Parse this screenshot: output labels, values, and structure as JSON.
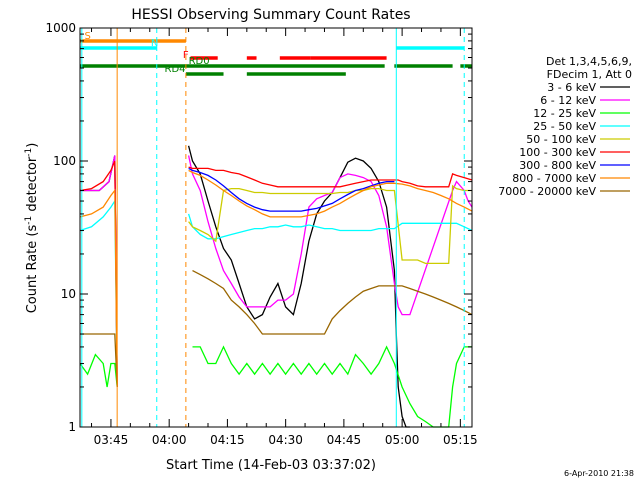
{
  "chart_data": {
    "type": "line",
    "title": "HESSI Observing Summary Count Rates",
    "xlabel": "Start Time (14-Feb-03 03:37:02)",
    "ylabel_main": "Count Rate (s",
    "ylabel_sup1": "-1",
    "ylabel_mid": " detector",
    "ylabel_sup2": "-1",
    "ylabel_end": ")",
    "y_scale": "log",
    "ylim": [
      1,
      1000
    ],
    "xlim": [
      37.03,
      138.0
    ],
    "x_unit": "minutes after 03:00 UT",
    "x_ticks": [
      {
        "value": 45,
        "label": "03:45"
      },
      {
        "value": 60,
        "label": "04:00"
      },
      {
        "value": 75,
        "label": "04:15"
      },
      {
        "value": 90,
        "label": "04:30"
      },
      {
        "value": 105,
        "label": "04:45"
      },
      {
        "value": 120,
        "label": "05:00"
      },
      {
        "value": 135,
        "label": "05:15"
      }
    ],
    "y_ticks": [
      {
        "value": 1,
        "label": "1"
      },
      {
        "value": 10,
        "label": "10"
      },
      {
        "value": 100,
        "label": "100"
      },
      {
        "value": 1000,
        "label": "1000"
      }
    ],
    "legend_header": [
      "Det 1,3,4,5,6,9,",
      "FDecim 1, Att 0"
    ],
    "legend_placement": "right",
    "series": [
      {
        "name": "3 - 6 keV",
        "color": "#000000",
        "x": [
          37.03,
          42,
          44.5,
          46,
          46.6,
          64.3,
          65,
          66,
          68,
          70,
          72,
          74,
          76,
          78,
          80,
          82,
          84,
          86,
          88,
          90,
          92,
          94,
          96,
          98,
          100,
          102,
          104,
          106,
          108,
          110,
          112,
          114,
          116,
          118,
          118.5,
          119,
          120,
          121,
          122
        ],
        "y": [
          60,
          60,
          70,
          110,
          2,
          null,
          130,
          100,
          80,
          50,
          32,
          22,
          18,
          12,
          8,
          6.5,
          7,
          9.5,
          12,
          8,
          7,
          12,
          25,
          40,
          50,
          58,
          75,
          98,
          105,
          100,
          88,
          70,
          45,
          15,
          5,
          2,
          1.2,
          1,
          1
        ]
      },
      {
        "name": "6 - 12 keV",
        "color": "#ff00ff",
        "x": [
          37.03,
          42,
          44.5,
          46,
          46.6,
          64.3,
          65,
          66,
          68,
          70,
          72,
          74,
          76,
          78,
          80,
          82,
          84,
          86,
          88,
          90,
          92,
          94,
          96,
          98,
          100,
          102,
          104,
          106,
          108,
          110,
          112,
          114,
          116,
          118,
          119,
          120,
          121,
          122,
          133,
          134,
          136,
          137,
          138
        ],
        "y": [
          60,
          60,
          70,
          110,
          2,
          null,
          110,
          80,
          60,
          35,
          22,
          15,
          12,
          9.5,
          8,
          8,
          8,
          8,
          9,
          9,
          10,
          20,
          45,
          52,
          55,
          58,
          75,
          80,
          78,
          75,
          70,
          55,
          32,
          12,
          8,
          7,
          7,
          7,
          60,
          70,
          60,
          50,
          45
        ]
      },
      {
        "name": "12 - 25 keV",
        "color": "#00ff00",
        "x": [
          37.03,
          39,
          41,
          43,
          44,
          45,
          46,
          46.6,
          64.3,
          66,
          68,
          70,
          72,
          74,
          76,
          78,
          80,
          82,
          84,
          86,
          88,
          90,
          92,
          94,
          96,
          98,
          100,
          102,
          104,
          106,
          108,
          110,
          112,
          114,
          116,
          118,
          120,
          122,
          124,
          126,
          128,
          130,
          132,
          133,
          134,
          136,
          138
        ],
        "y": [
          3,
          2.5,
          3.5,
          3,
          2,
          3,
          3,
          2,
          null,
          4,
          4,
          3,
          3,
          4,
          3,
          2.5,
          3,
          2.5,
          3,
          2.5,
          3,
          2.5,
          3,
          2.5,
          3,
          2.5,
          3,
          2.5,
          3,
          2.5,
          3.5,
          3,
          2.5,
          3,
          4,
          3,
          2,
          1.5,
          1.2,
          1.1,
          1,
          1,
          1,
          2,
          3,
          4,
          4
        ]
      },
      {
        "name": "25 - 50 keV",
        "color": "#00ffff",
        "x": [
          37.03,
          40,
          43,
          45,
          46,
          46.6,
          64.3,
          65,
          66,
          68,
          70,
          72,
          74,
          76,
          78,
          80,
          82,
          84,
          86,
          88,
          90,
          92,
          94,
          96,
          98,
          100,
          102,
          104,
          106,
          108,
          110,
          112,
          114,
          116,
          118,
          120,
          122,
          124,
          126,
          128,
          130,
          132,
          133,
          134,
          136,
          138
        ],
        "y": [
          30,
          32,
          38,
          45,
          50,
          2,
          null,
          40,
          32,
          28,
          26,
          26,
          27,
          28,
          29,
          30,
          31,
          31,
          32,
          32,
          33,
          32,
          32,
          33,
          32,
          31,
          31,
          30,
          30,
          30,
          30,
          30,
          31,
          31,
          31,
          34,
          34,
          34,
          34,
          34,
          34,
          34,
          34,
          34,
          32,
          30
        ]
      },
      {
        "name": "50 - 100 keV",
        "color": "#cccc00",
        "x": [
          64.3,
          65,
          66,
          68,
          70,
          72,
          74,
          76,
          78,
          80,
          82,
          84,
          86,
          88,
          90,
          92,
          94,
          96,
          98,
          100,
          102,
          104,
          106,
          108,
          110,
          112,
          114,
          116,
          118,
          120,
          122,
          124,
          126,
          128,
          130,
          132,
          133,
          134,
          136,
          138
        ],
        "y": [
          null,
          35,
          32,
          30,
          28,
          25,
          60,
          62,
          62,
          60,
          58,
          58,
          57,
          57,
          57,
          57,
          57,
          57,
          57,
          57,
          57,
          58,
          58,
          60,
          60,
          62,
          62,
          60,
          60,
          18,
          18,
          18,
          17,
          17,
          17,
          17,
          65,
          62,
          60,
          60
        ]
      },
      {
        "name": "100 - 300 keV",
        "color": "#ff0000",
        "x": [
          37.03,
          40,
          43,
          45,
          46,
          46.6,
          64.3,
          65,
          66,
          68,
          70,
          72,
          74,
          76,
          78,
          80,
          82,
          84,
          86,
          88,
          90,
          92,
          94,
          96,
          98,
          100,
          102,
          104,
          106,
          108,
          110,
          112,
          114,
          116,
          118,
          119,
          120,
          122,
          124,
          126,
          128,
          130,
          132,
          133,
          134,
          136,
          138
        ],
        "y": [
          60,
          62,
          70,
          85,
          100,
          2,
          null,
          90,
          88,
          88,
          88,
          85,
          85,
          82,
          80,
          76,
          72,
          68,
          66,
          64,
          64,
          64,
          64,
          64,
          64,
          64,
          64,
          64,
          66,
          68,
          70,
          72,
          72,
          72,
          72,
          72,
          70,
          68,
          65,
          64,
          64,
          64,
          64,
          80,
          78,
          75,
          72
        ]
      },
      {
        "name": "300 - 800 keV",
        "color": "#0000ff",
        "x": [
          64.3,
          65,
          66,
          68,
          70,
          72,
          74,
          76,
          78,
          80,
          82,
          84,
          86,
          88,
          90,
          92,
          94,
          96,
          98,
          100,
          102,
          104,
          106,
          108,
          110,
          112,
          114,
          116,
          118
        ],
        "y": [
          null,
          88,
          85,
          82,
          78,
          72,
          65,
          58,
          52,
          48,
          45,
          43,
          42,
          42,
          42,
          42,
          42,
          43,
          44,
          46,
          48,
          52,
          56,
          60,
          62,
          65,
          68,
          70,
          70
        ]
      },
      {
        "name": "800 - 7000 keV",
        "color": "#ff8800",
        "x": [
          37.03,
          40,
          43,
          45,
          46,
          46.6,
          64.3,
          65,
          66,
          68,
          70,
          72,
          74,
          76,
          78,
          80,
          82,
          84,
          86,
          88,
          90,
          92,
          94,
          96,
          98,
          100,
          102,
          104,
          106,
          108,
          110,
          112,
          114,
          116,
          118,
          120,
          122,
          124,
          126,
          128,
          130,
          132,
          134,
          136,
          138
        ],
        "y": [
          38,
          40,
          45,
          55,
          60,
          2,
          null,
          85,
          82,
          78,
          72,
          66,
          60,
          55,
          50,
          46,
          43,
          40,
          38,
          38,
          38,
          38,
          38,
          39,
          40,
          42,
          45,
          48,
          52,
          56,
          60,
          64,
          66,
          68,
          68,
          67,
          65,
          62,
          60,
          58,
          55,
          52,
          48,
          45,
          42
        ]
      },
      {
        "name": "7000 - 20000 keV",
        "color": "#996600",
        "x": [
          37.03,
          40,
          43,
          45,
          46,
          46.6,
          64.3,
          66,
          68,
          70,
          72,
          74,
          76,
          78,
          80,
          82,
          84,
          86,
          88,
          90,
          92,
          94,
          96,
          98,
          100,
          102,
          104,
          106,
          108,
          110,
          112,
          114,
          116,
          118,
          120,
          122,
          124,
          126,
          128,
          130,
          132,
          134,
          136,
          138
        ],
        "y": [
          5,
          5,
          5,
          5,
          5,
          2,
          null,
          15,
          14,
          13,
          12,
          11,
          9,
          8,
          7,
          6,
          5,
          5,
          5,
          5,
          5,
          5,
          5,
          5,
          5,
          6.5,
          7.5,
          8.5,
          9.5,
          10.5,
          11,
          11.5,
          11.5,
          11.5,
          11.5,
          11,
          10.5,
          10,
          9.5,
          9,
          8.5,
          8,
          7.5,
          7
        ]
      }
    ],
    "vertical_lines": [
      {
        "x": 46.6,
        "color": "#ff8800",
        "style": "solid"
      },
      {
        "x": 37.5,
        "color": "#00ffff",
        "style": "solid"
      },
      {
        "x": 56.8,
        "color": "#00ffff",
        "style": "dashed"
      },
      {
        "x": 64.3,
        "color": "#ff8800",
        "style": "dashed"
      },
      {
        "x": 118.5,
        "color": "#00ffff",
        "style": "solid"
      },
      {
        "x": 136.0,
        "color": "#00ffff",
        "style": "dashed"
      }
    ],
    "flag_bars": [
      {
        "label": "S",
        "color": "#ff8800",
        "segments": [
          [
            37.03,
            64.3
          ]
        ],
        "level": 1
      },
      {
        "label": "N",
        "color": "#00ffff",
        "segments": [
          [
            37.03,
            56.8
          ],
          [
            118.5,
            136.0
          ]
        ],
        "level": 2
      },
      {
        "label": "F",
        "color": "#ff0000",
        "segments": [
          [
            65.5,
            72.5
          ],
          [
            80,
            82.5
          ],
          [
            88.5,
            96.5
          ],
          [
            96.5,
            116
          ]
        ],
        "level": 3
      },
      {
        "label": "RD0",
        "color": "#008000",
        "segments": [
          [
            37.03,
            64.3
          ],
          [
            64.3,
            115.5
          ],
          [
            118,
            133
          ],
          [
            135,
            138
          ]
        ],
        "level": 4
      },
      {
        "label": "RD4",
        "color": "#008000",
        "segments": [
          [
            64.3,
            74
          ],
          [
            80,
            105.5
          ]
        ],
        "level": 5
      }
    ]
  },
  "footer": {
    "timestamp": "6-Apr-2010 21:38"
  }
}
